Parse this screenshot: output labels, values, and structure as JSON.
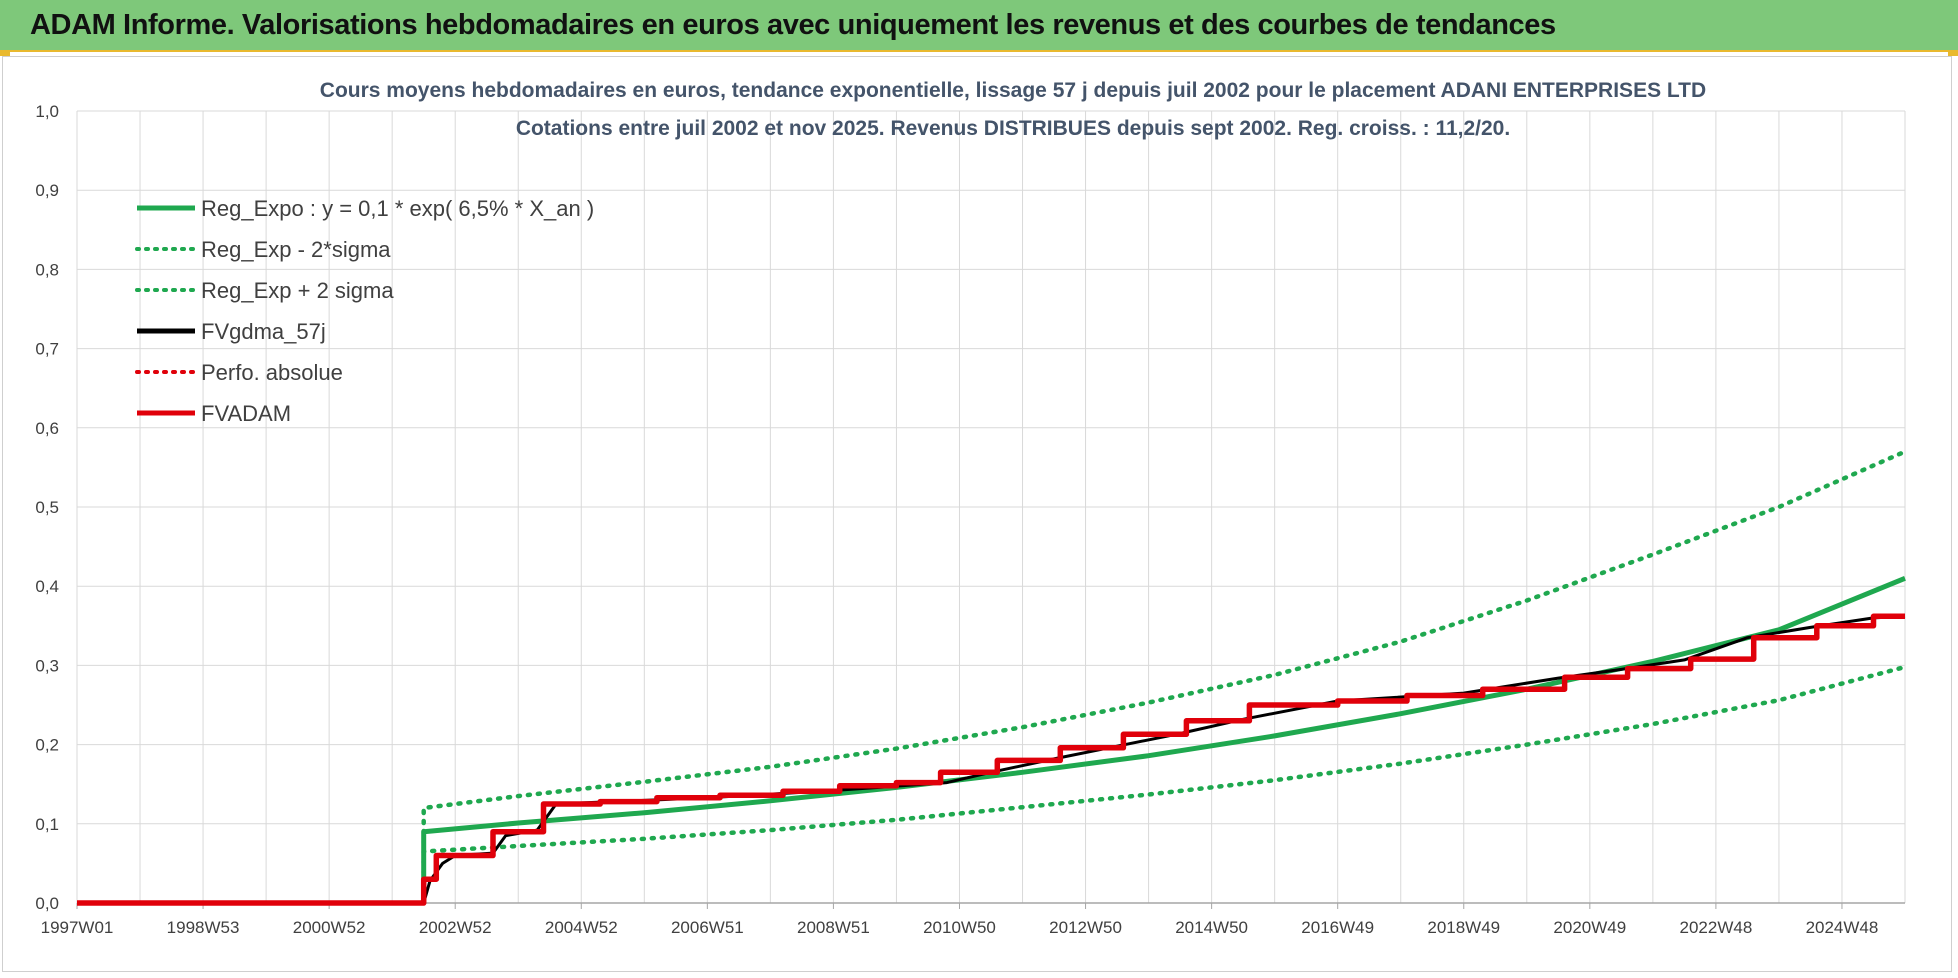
{
  "header": {
    "title": "ADAM Informe. Valorisations hebdomadaires en euros avec uniquement les revenus et des courbes de tendances"
  },
  "colors": {
    "header_bg": "#7ec87a",
    "green": "#1fa84f",
    "black": "#000000",
    "red": "#e0000a",
    "grid": "#d9d9d9"
  },
  "chart_data": {
    "type": "line",
    "title_line1": "Cours moyens hebdomadaires en euros, tendance exponentielle, lissage 57 j depuis juil 2002 pour le placement ADANI ENTERPRISES LTD",
    "title_line2": "Cotations entre juil 2002 et nov 2025. Revenus DISTRIBUES depuis sept 2002. Reg. croiss. : 11,2/20.",
    "x_ticks": [
      "1997W01",
      "1998W53",
      "2000W52",
      "2002W52",
      "2004W52",
      "2006W51",
      "2008W51",
      "2010W50",
      "2012W50",
      "2014W50",
      "2016W49",
      "2018W49",
      "2020W49",
      "2022W48",
      "2024W48"
    ],
    "x_range": [
      1997.0,
      2026.0
    ],
    "y_ticks": [
      "0,0",
      "0,1",
      "0,2",
      "0,3",
      "0,4",
      "0,5",
      "0,6",
      "0,7",
      "0,8",
      "0,9",
      "1,0"
    ],
    "ylim": [
      0,
      1.0
    ],
    "grid": true,
    "legend_position": "top-left",
    "legend": [
      {
        "label": "Reg_Expo : y = 0,1 * exp( 6,5% *  X_an )",
        "color": "#1fa84f",
        "style": "solid"
      },
      {
        "label": "Reg_Exp - 2*sigma",
        "color": "#1fa84f",
        "style": "dotted"
      },
      {
        "label": "Reg_Exp + 2 sigma",
        "color": "#1fa84f",
        "style": "dotted"
      },
      {
        "label": "FVgdma_57j",
        "color": "#000000",
        "style": "solid"
      },
      {
        "label": "Perfo. absolue",
        "color": "#e0000a",
        "style": "dotted"
      },
      {
        "label": "FVADAM",
        "color": "#e0000a",
        "style": "solid"
      }
    ],
    "series": [
      {
        "name": "Reg_Expo : y = 0,1 * exp( 6,5% *  X_an )",
        "x": [
          1997.0,
          2002.5,
          2002.5,
          2004,
          2006,
          2008,
          2010,
          2012,
          2014,
          2016,
          2018,
          2020,
          2022,
          2024,
          2026
        ],
        "y": [
          0,
          0,
          0.09,
          0.101,
          0.114,
          0.129,
          0.146,
          0.165,
          0.186,
          0.211,
          0.239,
          0.27,
          0.305,
          0.345,
          0.41
        ]
      },
      {
        "name": "Reg_Exp - 2*sigma",
        "x": [
          2002.5,
          2002.5,
          2004,
          2006,
          2008,
          2010,
          2012,
          2014,
          2016,
          2018,
          2020,
          2022,
          2024,
          2026
        ],
        "y": [
          0,
          0.065,
          0.072,
          0.081,
          0.092,
          0.105,
          0.121,
          0.137,
          0.155,
          0.176,
          0.2,
          0.226,
          0.256,
          0.298
        ]
      },
      {
        "name": "Reg_Exp + 2 sigma",
        "x": [
          2002.5,
          2002.5,
          2004,
          2006,
          2008,
          2010,
          2012,
          2014,
          2016,
          2018,
          2020,
          2022,
          2024,
          2026
        ],
        "y": [
          0,
          0.12,
          0.135,
          0.153,
          0.172,
          0.195,
          0.222,
          0.253,
          0.288,
          0.33,
          0.382,
          0.44,
          0.5,
          0.57
        ]
      },
      {
        "name": "FVgdma_57j",
        "x": [
          1997.0,
          2002.5,
          2002.6,
          2002.8,
          2003.0,
          2003.6,
          2003.8,
          2004.3,
          2004.6,
          2007,
          2009,
          2010.8,
          2011.5,
          2012.5,
          2013.5,
          2014.5,
          2015.5,
          2017,
          2019,
          2020.5,
          2021.5,
          2022.5,
          2023.5,
          2024.5,
          2025.5,
          2026
        ],
        "y": [
          0,
          0,
          0.028,
          0.05,
          0.06,
          0.063,
          0.085,
          0.092,
          0.125,
          0.133,
          0.142,
          0.152,
          0.165,
          0.182,
          0.198,
          0.214,
          0.232,
          0.255,
          0.265,
          0.284,
          0.295,
          0.307,
          0.335,
          0.348,
          0.36,
          0.362
        ]
      },
      {
        "name": "FVADAM",
        "x": [
          1997.0,
          2002.5,
          2002.5,
          2002.7,
          2002.7,
          2003.6,
          2003.6,
          2004.4,
          2004.4,
          2005.3,
          2005.3,
          2006.2,
          2006.2,
          2007.2,
          2007.2,
          2008.2,
          2008.2,
          2009.1,
          2009.1,
          2010.0,
          2010.0,
          2010.7,
          2010.7,
          2011.6,
          2011.6,
          2012.6,
          2012.6,
          2013.6,
          2013.6,
          2014.6,
          2014.6,
          2015.6,
          2015.6,
          2017.0,
          2017.0,
          2018.1,
          2018.1,
          2019.3,
          2019.3,
          2020.6,
          2020.6,
          2021.6,
          2021.6,
          2022.6,
          2022.6,
          2023.6,
          2023.6,
          2024.6,
          2024.6,
          2025.5,
          2025.5,
          2026.0
        ],
        "y": [
          0,
          0,
          0.03,
          0.03,
          0.06,
          0.06,
          0.09,
          0.09,
          0.125,
          0.125,
          0.128,
          0.128,
          0.133,
          0.133,
          0.136,
          0.136,
          0.141,
          0.141,
          0.148,
          0.148,
          0.152,
          0.152,
          0.165,
          0.165,
          0.18,
          0.18,
          0.196,
          0.196,
          0.213,
          0.213,
          0.23,
          0.23,
          0.25,
          0.25,
          0.255,
          0.255,
          0.262,
          0.262,
          0.27,
          0.27,
          0.285,
          0.285,
          0.296,
          0.296,
          0.308,
          0.308,
          0.335,
          0.335,
          0.35,
          0.35,
          0.362,
          0.362
        ]
      }
    ]
  }
}
